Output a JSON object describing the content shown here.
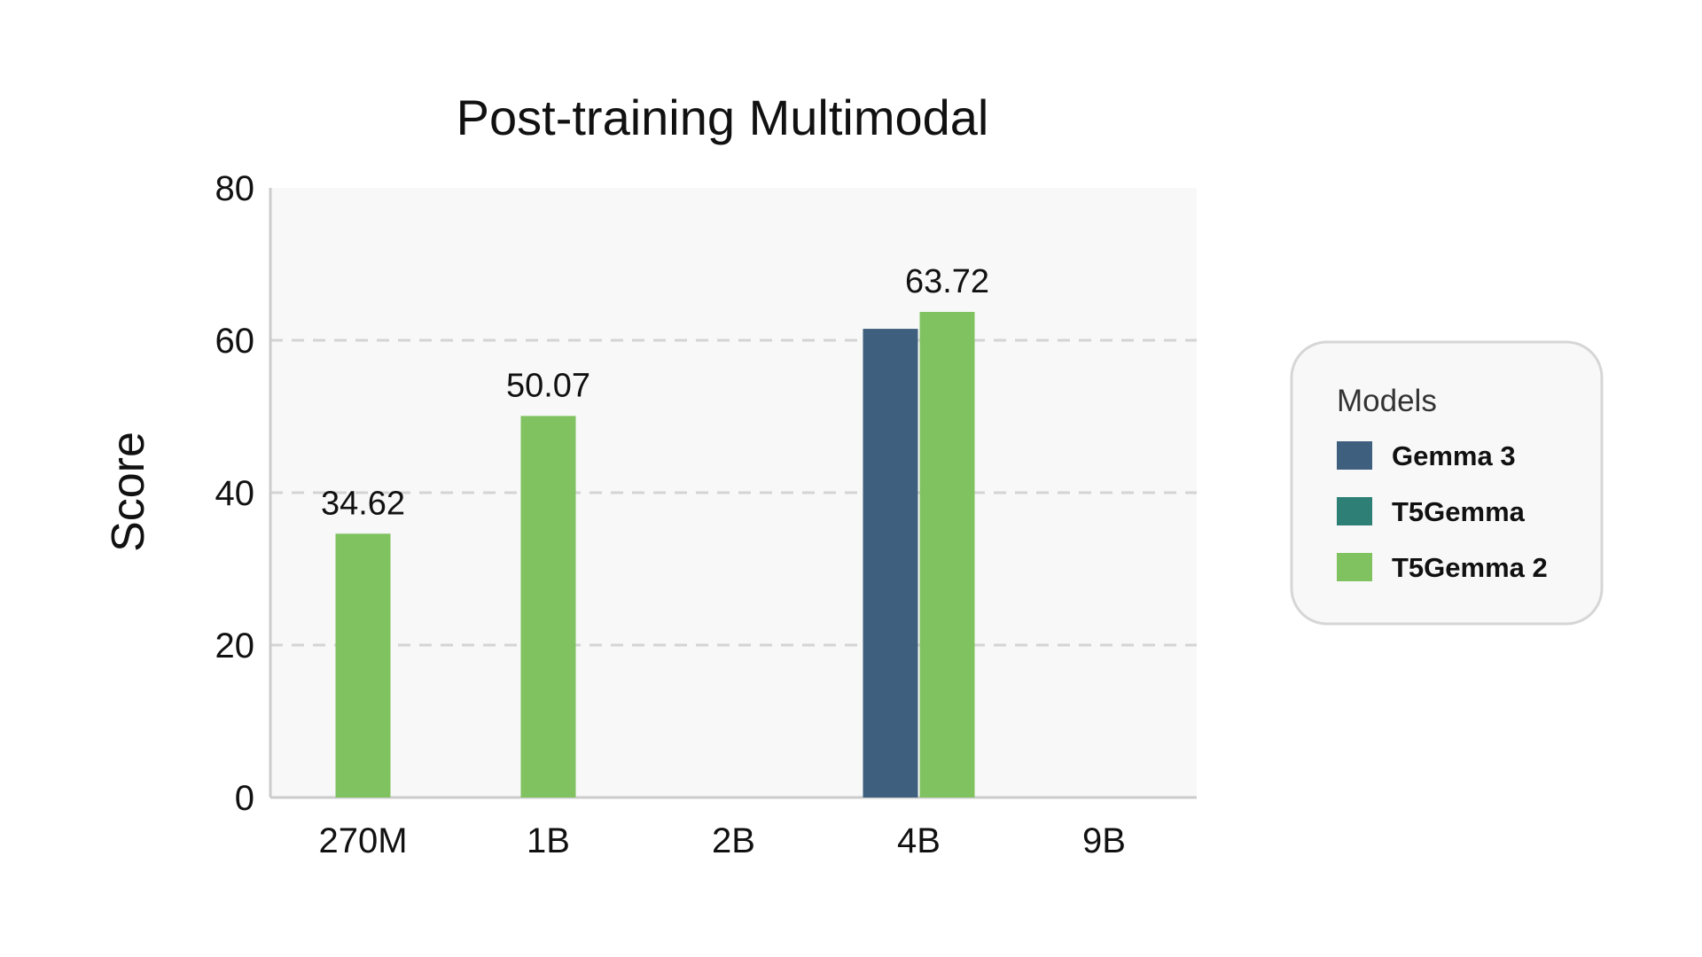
{
  "chart_data": {
    "type": "bar",
    "title": "Post-training Multimodal",
    "xlabel": "",
    "ylabel": "Score",
    "ylim": [
      0,
      80
    ],
    "yticks": [
      0,
      20,
      40,
      60,
      80
    ],
    "grid": true,
    "legend_placement": "right",
    "categories": [
      "270M",
      "1B",
      "2B",
      "4B",
      "9B"
    ],
    "series": [
      {
        "name": "Gemma 3",
        "color": "#3f5f7f",
        "values": [
          null,
          null,
          null,
          61.5,
          null
        ]
      },
      {
        "name": "T5Gemma",
        "color": "#2e8077",
        "values": [
          null,
          null,
          null,
          null,
          null
        ]
      },
      {
        "name": "T5Gemma 2",
        "color": "#80c260",
        "values": [
          34.62,
          50.07,
          null,
          63.72,
          null
        ]
      }
    ],
    "data_labels": [
      {
        "category": "270M",
        "series": "T5Gemma 2",
        "text": "34.62"
      },
      {
        "category": "1B",
        "series": "T5Gemma 2",
        "text": "50.07"
      },
      {
        "category": "4B",
        "series": "T5Gemma 2",
        "text": "63.72"
      }
    ],
    "legend": {
      "title": "Models"
    }
  }
}
